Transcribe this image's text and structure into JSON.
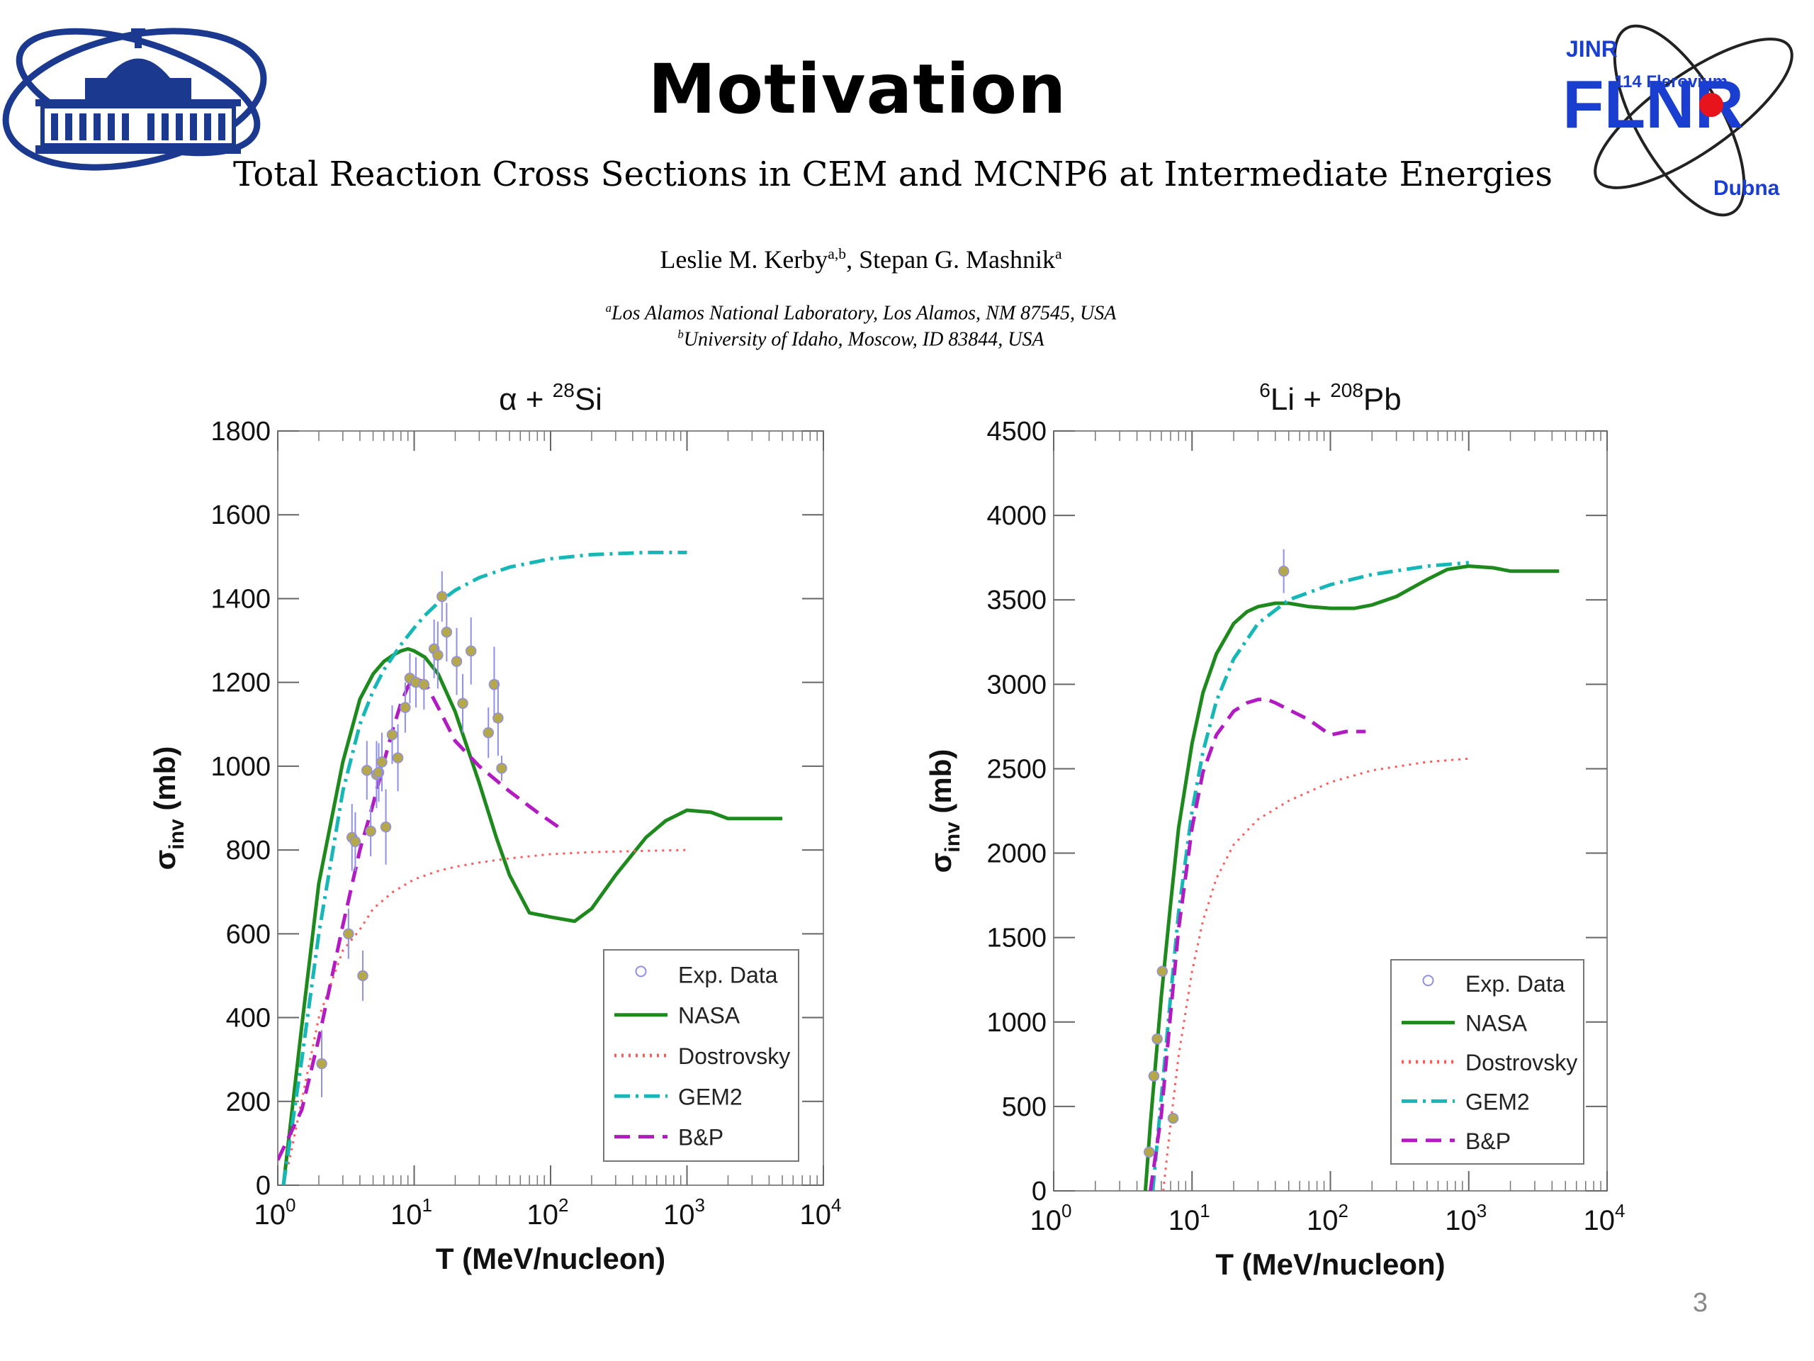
{
  "slide": {
    "title": "Motivation",
    "paper_title": "Total Reaction Cross Sections in CEM and MCNP6 at Intermediate Energies",
    "authors_pre": "Leslie M. Kerby",
    "authors_sup1": "a,b",
    "authors_mid": ", Stepan G. Mashnik",
    "authors_sup2": "a",
    "affil_a_sup": "a",
    "affil_a": "Los Alamos National Laboratory, Los Alamos, NM 87545, USA",
    "affil_b_sup": "b",
    "affil_b": "University of Idaho, Moscow, ID 83844, USA",
    "page_number": "3",
    "logo_left": {
      "name": "jinr-building-logo",
      "color": "#1b3a8f"
    },
    "logo_right": {
      "text_jinr": "JINR",
      "text_flnr": "FLNR",
      "text_flerovium": "114 Flerovium",
      "text_dubna": "Dubna",
      "color": "#1a3fd0",
      "dot_color": "#e8141b"
    }
  },
  "chart_data": [
    {
      "type": "line",
      "title_parts": {
        "pre": "α + ",
        "sup": "28",
        "post": "Si"
      },
      "xlabel": "T (MeV/nucleon)",
      "ylabel": "σ",
      "ylabel_sub": "inv",
      "ylabel_unit": " (mb)",
      "xscale": "log",
      "xlim": [
        1,
        10000
      ],
      "ylim": [
        0,
        1800
      ],
      "yticks": [
        "0",
        "200",
        "400",
        "600",
        "800",
        "1000",
        "1200",
        "1400",
        "1600",
        "1800"
      ],
      "xtick_exponents": [
        "0",
        "1",
        "2",
        "3",
        "4"
      ],
      "legend_position": "bottom-right",
      "legend": [
        "Exp. Data",
        "NASA",
        "Dostrovsky",
        "GEM2",
        "B&P"
      ],
      "series": [
        {
          "name": "NASA",
          "color": "#1e8a1e",
          "style": "solid",
          "x": [
            1.1,
            1.5,
            2,
            3,
            4,
            5,
            6,
            7,
            8,
            9,
            10,
            12,
            15,
            20,
            30,
            40,
            50,
            70,
            100,
            150,
            200,
            300,
            500,
            700,
            1000,
            1500,
            2000,
            3000,
            5000
          ],
          "y": [
            0,
            380,
            720,
            1010,
            1160,
            1220,
            1250,
            1265,
            1275,
            1280,
            1275,
            1260,
            1220,
            1130,
            960,
            830,
            740,
            650,
            640,
            630,
            660,
            740,
            830,
            870,
            895,
            890,
            875,
            875,
            875
          ]
        },
        {
          "name": "Dostrovsky",
          "color": "#ff5a5a",
          "style": "dotted",
          "x": [
            1.2,
            2,
            3,
            4,
            5,
            7,
            10,
            15,
            20,
            30,
            50,
            100,
            200,
            500,
            1000
          ],
          "y": [
            50,
            400,
            560,
            610,
            660,
            700,
            730,
            750,
            760,
            770,
            780,
            790,
            795,
            798,
            800
          ]
        },
        {
          "name": "GEM2",
          "color": "#17b7b7",
          "style": "dashdot",
          "x": [
            1.1,
            1.5,
            2,
            3,
            4,
            5,
            6,
            8,
            10,
            12,
            15,
            20,
            30,
            50,
            100,
            200,
            500,
            1000
          ],
          "y": [
            0,
            300,
            600,
            940,
            1100,
            1180,
            1230,
            1290,
            1330,
            1360,
            1390,
            1420,
            1450,
            1475,
            1495,
            1505,
            1510,
            1510
          ]
        },
        {
          "name": "B&P",
          "color": "#b21bc2",
          "style": "dashed",
          "x": [
            1.0,
            1.5,
            2,
            3,
            4,
            5,
            6,
            7,
            8,
            9,
            10,
            12,
            15,
            20,
            30,
            50,
            80,
            120
          ],
          "y": [
            60,
            180,
            350,
            620,
            800,
            910,
            1010,
            1090,
            1150,
            1190,
            1210,
            1200,
            1140,
            1060,
            1000,
            940,
            890,
            850
          ]
        }
      ],
      "points": {
        "name": "Exp. Data",
        "x": [
          2.1,
          3.3,
          3.5,
          3.7,
          4.2,
          4.5,
          4.8,
          5.3,
          5.5,
          5.8,
          6.2,
          6.9,
          7.6,
          8.6,
          9.3,
          10.3,
          11.8,
          14.0,
          14.9,
          16.0,
          17.3,
          20.5,
          22.7,
          26.1,
          35.0,
          38.6,
          41.2,
          43.8
        ],
        "y": [
          290,
          600,
          830,
          820,
          500,
          990,
          845,
          980,
          985,
          1010,
          855,
          1075,
          1020,
          1140,
          1210,
          1200,
          1195,
          1280,
          1265,
          1405,
          1320,
          1250,
          1150,
          1275,
          1080,
          1195,
          1115,
          995
        ],
        "err": [
          80,
          60,
          80,
          70,
          60,
          70,
          60,
          80,
          70,
          70,
          90,
          70,
          80,
          60,
          60,
          60,
          60,
          70,
          80,
          60,
          70,
          80,
          70,
          80,
          60,
          90,
          90,
          30
        ]
      }
    },
    {
      "type": "line",
      "title_parts": {
        "pre_sup": "6",
        "pre": "Li + ",
        "sup": "208",
        "post": "Pb"
      },
      "xlabel": "T (MeV/nucleon)",
      "ylabel": "σ",
      "ylabel_sub": "inv",
      "ylabel_unit": " (mb)",
      "xscale": "log",
      "xlim": [
        1,
        10000
      ],
      "ylim": [
        0,
        4500
      ],
      "yticks": [
        "0",
        "500",
        "1000",
        "1500",
        "2000",
        "2500",
        "3000",
        "3500",
        "4000",
        "4500"
      ],
      "xtick_exponents": [
        "0",
        "1",
        "2",
        "3",
        "4"
      ],
      "legend_position": "bottom-right",
      "legend": [
        "Exp. Data",
        "NASA",
        "Dostrovsky",
        "GEM2",
        "B&P"
      ],
      "series": [
        {
          "name": "NASA",
          "color": "#1e8a1e",
          "style": "solid",
          "x": [
            4.6,
            5,
            6,
            7,
            8,
            10,
            12,
            15,
            20,
            25,
            30,
            40,
            50,
            70,
            100,
            150,
            200,
            300,
            500,
            700,
            1000,
            1500,
            2000,
            3000,
            4500
          ],
          "y": [
            0,
            400,
            1150,
            1700,
            2150,
            2650,
            2950,
            3180,
            3360,
            3430,
            3460,
            3480,
            3480,
            3460,
            3450,
            3450,
            3470,
            3520,
            3620,
            3680,
            3700,
            3690,
            3670,
            3670,
            3670
          ]
        },
        {
          "name": "Dostrovsky",
          "color": "#ff5a5a",
          "style": "dotted",
          "x": [
            6.2,
            7,
            8,
            10,
            12,
            15,
            20,
            30,
            50,
            100,
            200,
            500,
            1000
          ],
          "y": [
            0,
            400,
            800,
            1300,
            1600,
            1850,
            2050,
            2200,
            2310,
            2420,
            2490,
            2540,
            2560
          ]
        },
        {
          "name": "GEM2",
          "color": "#17b7b7",
          "style": "dashdot",
          "x": [
            5.2,
            6,
            7,
            8,
            10,
            12,
            15,
            20,
            30,
            50,
            100,
            200,
            500,
            1000
          ],
          "y": [
            0,
            550,
            1150,
            1650,
            2250,
            2600,
            2900,
            3150,
            3360,
            3500,
            3590,
            3650,
            3700,
            3720
          ]
        },
        {
          "name": "B&P",
          "color": "#b21bc2",
          "style": "dashed",
          "x": [
            5,
            6,
            7,
            8,
            10,
            12,
            15,
            20,
            25,
            30,
            35,
            40,
            50,
            70,
            100,
            130,
            180
          ],
          "y": [
            0,
            450,
            1050,
            1550,
            2150,
            2480,
            2700,
            2840,
            2890,
            2910,
            2910,
            2890,
            2850,
            2790,
            2700,
            2720,
            2720
          ]
        }
      ],
      "points": {
        "name": "Exp. Data",
        "x": [
          4.9,
          5.3,
          5.6,
          6.1,
          7.3,
          46
        ],
        "y": [
          230,
          680,
          900,
          1300,
          430,
          3670
        ],
        "err": [
          0,
          0,
          0,
          0,
          0,
          130
        ]
      }
    }
  ]
}
